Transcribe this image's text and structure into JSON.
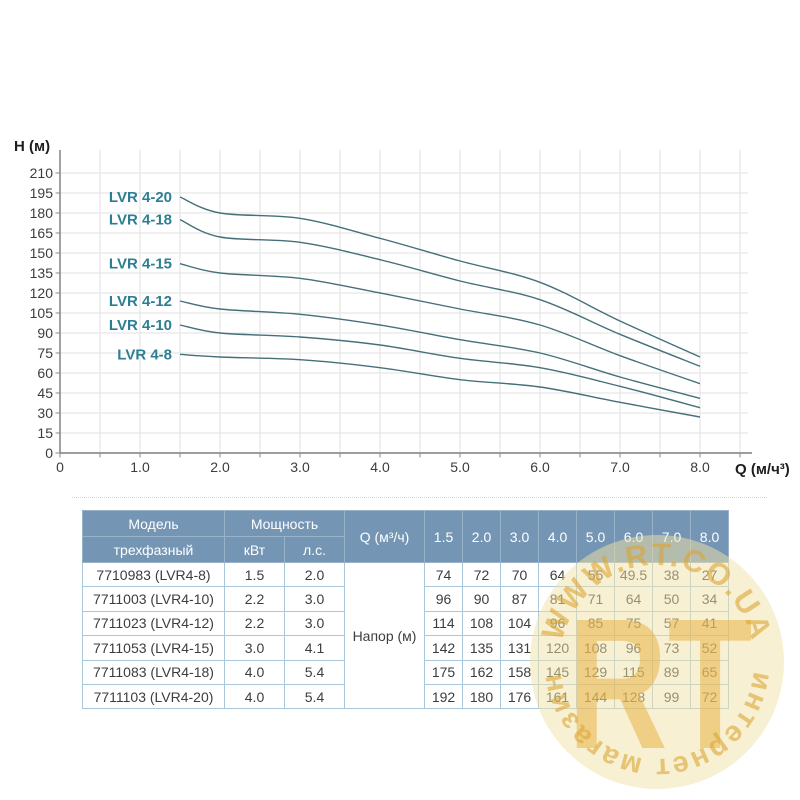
{
  "figure": {
    "y_axis_title": "H (м)",
    "x_axis_title": "Q (м/ч³)",
    "x_tick_labels": [
      "0",
      "1.0",
      "2.0",
      "3.0",
      "4.0",
      "5.0",
      "6.0",
      "7.0",
      "8.0"
    ],
    "y_tick_labels": [
      "0",
      "15",
      "30",
      "45",
      "60",
      "75",
      "90",
      "105",
      "120",
      "135",
      "150",
      "165",
      "180",
      "195",
      "210"
    ]
  },
  "chart_data": {
    "type": "line",
    "title": "",
    "xlabel": "Q (м/ч³)",
    "ylabel": "H (м)",
    "x": [
      1.5,
      2.0,
      3.0,
      4.0,
      5.0,
      6.0,
      7.0,
      8.0
    ],
    "series": [
      {
        "name": "LVR 4-8",
        "values": [
          74,
          72,
          70,
          64,
          55,
          49.5,
          38,
          27
        ]
      },
      {
        "name": "LVR 4-10",
        "values": [
          96,
          90,
          87,
          81,
          71,
          64,
          50,
          34
        ]
      },
      {
        "name": "LVR 4-12",
        "values": [
          114,
          108,
          104,
          96,
          85,
          75,
          57,
          41
        ]
      },
      {
        "name": "LVR 4-15",
        "values": [
          142,
          135,
          131,
          120,
          108,
          96,
          73,
          52
        ]
      },
      {
        "name": "LVR 4-18",
        "values": [
          175,
          162,
          158,
          145,
          129,
          115,
          89,
          65
        ]
      },
      {
        "name": "LVR 4-20",
        "values": [
          192,
          180,
          176,
          161,
          144,
          128,
          99,
          72
        ]
      }
    ],
    "xlim": [
      0,
      8.5
    ],
    "ylim": [
      0,
      225
    ],
    "x_major_step": 1.0,
    "x_grid_step": 0.5,
    "y_grid_step": 15,
    "grid": true,
    "legend": "inline-labels-left-of-curves"
  },
  "table": {
    "header": {
      "model": "Модель",
      "model_sub": "трехфазный",
      "power": "Мощность",
      "kw": "кВт",
      "hp": "л.с.",
      "q": "Q (м³/ч)",
      "q_values": [
        "1.5",
        "2.0",
        "3.0",
        "4.0",
        "5.0",
        "6.0",
        "7.0",
        "8.0"
      ]
    },
    "head_span_label": "Напор (м)",
    "rows": [
      {
        "model": "7710983 (LVR4-8)",
        "kw": "1.5",
        "hp": "2.0",
        "values": [
          "74",
          "72",
          "70",
          "64",
          "55",
          "49.5",
          "38",
          "27"
        ]
      },
      {
        "model": "7711003 (LVR4-10)",
        "kw": "2.2",
        "hp": "3.0",
        "values": [
          "96",
          "90",
          "87",
          "81",
          "71",
          "64",
          "50",
          "34"
        ]
      },
      {
        "model": "7711023 (LVR4-12)",
        "kw": "2.2",
        "hp": "3.0",
        "values": [
          "114",
          "108",
          "104",
          "96",
          "85",
          "75",
          "57",
          "41"
        ]
      },
      {
        "model": "7711053 (LVR4-15)",
        "kw": "3.0",
        "hp": "4.1",
        "values": [
          "142",
          "135",
          "131",
          "120",
          "108",
          "96",
          "73",
          "52"
        ]
      },
      {
        "model": "7711083 (LVR4-18)",
        "kw": "4.0",
        "hp": "5.4",
        "values": [
          "175",
          "162",
          "158",
          "145",
          "129",
          "115",
          "89",
          "65"
        ]
      },
      {
        "model": "7711103 (LVR4-20)",
        "kw": "4.0",
        "hp": "5.4",
        "values": [
          "192",
          "180",
          "176",
          "161",
          "144",
          "128",
          "99",
          "72"
        ]
      }
    ]
  },
  "watermark": {
    "top_text": "WWW.RT.CO.UA",
    "monogram": "RT",
    "bottom_text": "интернет магазин"
  },
  "colors": {
    "curve": "#45707a",
    "curve_label": "#2b7e93",
    "grid": "#e2e2e2",
    "axis": "#8a8a8a",
    "tick_text": "#3c3c3c",
    "header_bg": "#7496b4",
    "header_text": "#ffffff",
    "body_border": "#a9c6da",
    "watermark_gold": "#dca637",
    "watermark_circle": "#f2e2a6"
  }
}
